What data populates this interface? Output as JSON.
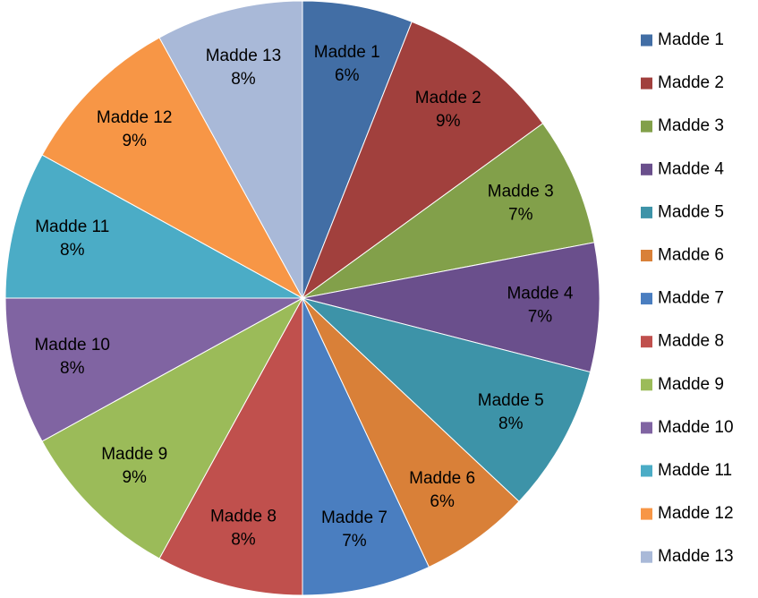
{
  "chart_data": {
    "type": "pie",
    "categories": [
      "Madde 1",
      "Madde 2",
      "Madde 3",
      "Madde 4",
      "Madde 5",
      "Madde 6",
      "Madde 7",
      "Madde 8",
      "Madde 9",
      "Madde 10",
      "Madde 11",
      "Madde 12",
      "Madde 13"
    ],
    "values": [
      6,
      9,
      7,
      7,
      8,
      6,
      7,
      8,
      9,
      8,
      8,
      9,
      8
    ],
    "value_labels": [
      "6%",
      "9%",
      "7%",
      "7%",
      "8%",
      "6%",
      "7%",
      "8%",
      "9%",
      "8%",
      "8%",
      "9%",
      "8%"
    ],
    "colors": [
      "#426ea5",
      "#a1403d",
      "#82a04a",
      "#6a4f8c",
      "#3d93a8",
      "#d98038",
      "#4a7ec0",
      "#c0504d",
      "#9bbb59",
      "#8064a2",
      "#4bacc6",
      "#f79646",
      "#a9b9d8"
    ],
    "legend": "right"
  }
}
